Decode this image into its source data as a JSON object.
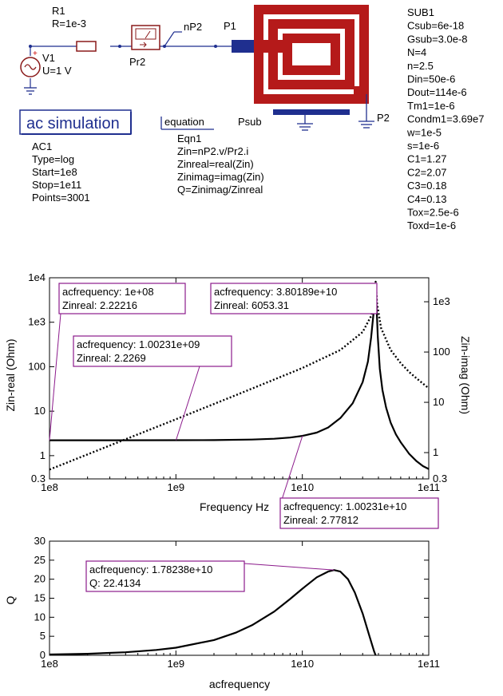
{
  "schematic": {
    "r1": {
      "name": "R1",
      "value": "R=1e-3"
    },
    "v1": {
      "name": "V1",
      "value": "U=1 V"
    },
    "pr2": {
      "name": "Pr2"
    },
    "node_np2": "nP2",
    "p1": "P1",
    "p2": "P2",
    "psub": "Psub",
    "ac_button": "ac simulation",
    "ac_lines": [
      "AC1",
      "Type=log",
      "Start=1e8",
      "Stop=1e11",
      "Points=3001"
    ],
    "equation_title": "equation",
    "equation_lines": [
      "Eqn1",
      "Zin=nP2.v/Pr2.i",
      "Zinreal=real(Zin)",
      "Zinimag=imag(Zin)",
      "Q=Zinimag/Zinreal"
    ],
    "sub_lines": [
      "SUB1",
      "Csub=6e-18",
      "Gsub=3.0e-8",
      "N=4",
      "n=2.5",
      "Din=50e-6",
      "Dout=114e-6",
      "Tm1=1e-6",
      "Condm1=3.69e7",
      "w=1e-5",
      "s=1e-6",
      "C1=1.27",
      "C2=2.07",
      "C3=0.18",
      "C4=0.13",
      "Tox=2.5e-6",
      "Toxd=1e-6"
    ],
    "colors": {
      "inductor": "#b51a1a",
      "port": "#1f2f8f",
      "wire": "#1f2f8f",
      "component": "#8a1a1a",
      "marker": "#8b1a8b"
    }
  },
  "chart_data": [
    {
      "type": "line",
      "xlabel": "Frequency Hz",
      "ylabel": "Zin-real (Ohm)",
      "ylabel_right": "Zin-imag (Ohm)",
      "x_scale": "log",
      "xlim": [
        100000000.0,
        100000000000.0
      ],
      "ylim": [
        0.3,
        10000
      ],
      "y2lim": [
        0.3,
        3000
      ],
      "x_ticks": [
        "1e8",
        "1e9",
        "1e10",
        "1e11"
      ],
      "y_ticks": [
        "0.3",
        "1",
        "10",
        "100",
        "1e3",
        "1e4"
      ],
      "y2_ticks": [
        "0.3",
        "1",
        "10",
        "100",
        "1e3"
      ],
      "series": [
        {
          "axis": "left",
          "style": "solid",
          "x": [
            100000000.0,
            300000000.0,
            1000000000.0,
            2000000000.0,
            4000000000.0,
            6000000000.0,
            8000000000.0,
            10000000000.0,
            13000000000.0,
            16000000000.0,
            20000000000.0,
            25000000000.0,
            30000000000.0,
            33000000000.0,
            35000000000.0,
            36500000000.0,
            37500000000.0,
            38000000000.0,
            38500000000.0,
            39500000000.0,
            41000000000.0,
            43000000000.0,
            46000000000.0,
            50000000000.0,
            55000000000.0,
            60000000000.0,
            70000000000.0,
            80000000000.0,
            90000000000.0,
            100000000000.0
          ],
          "y": [
            2.22,
            2.22,
            2.23,
            2.24,
            2.3,
            2.4,
            2.55,
            2.78,
            3.3,
            4.3,
            7,
            15,
            45,
            130,
            450,
            1500,
            4500,
            6053,
            3000,
            500,
            90,
            30,
            12,
            5.5,
            3,
            2,
            1.1,
            0.75,
            0.58,
            0.5
          ]
        },
        {
          "axis": "right",
          "style": "dotted",
          "x": [
            100000000.0,
            300000000.0,
            1000000000.0,
            3000000000.0,
            10000000000.0,
            20000000000.0,
            30000000000.0,
            35000000000.0,
            37000000000.0,
            38000000000.0,
            39000000000.0,
            42000000000.0,
            50000000000.0,
            60000000000.0,
            70000000000.0,
            80000000000.0,
            100000000000.0
          ],
          "y": [
            0.46,
            1.38,
            4.6,
            14,
            48,
            110,
            250,
            520,
            1100,
            2500,
            900,
            300,
            110,
            60,
            40,
            30,
            19
          ]
        }
      ],
      "markers": [
        {
          "text": [
            "acfrequency: 1e+08",
            "Zinreal: 2.22216"
          ],
          "x": 100000000.0,
          "y": 2.22216
        },
        {
          "text": [
            "acfrequency: 3.80189e+10",
            "Zinreal: 6053.31"
          ],
          "x": 38018900000.0,
          "y": 6053.31
        },
        {
          "text": [
            "acfrequency: 1.00231e+09",
            "Zinreal: 2.2269"
          ],
          "x": 1002310000.0,
          "y": 2.2269
        },
        {
          "text": [
            "acfrequency: 1.00231e+10",
            "Zinreal: 2.77812"
          ],
          "x": 10023100000.0,
          "y": 2.77812
        }
      ]
    },
    {
      "type": "line",
      "xlabel": "acfrequency",
      "ylabel": "Q",
      "x_scale": "log",
      "xlim": [
        100000000.0,
        100000000000.0
      ],
      "ylim": [
        0,
        30
      ],
      "x_ticks": [
        "1e8",
        "1e9",
        "1e10",
        "1e11"
      ],
      "y_ticks": [
        "0",
        "5",
        "10",
        "15",
        "20",
        "25",
        "30"
      ],
      "series": [
        {
          "style": "solid",
          "x": [
            100000000.0,
            200000000.0,
            400000000.0,
            700000000.0,
            1000000000.0,
            2000000000.0,
            3000000000.0,
            4000000000.0,
            6000000000.0,
            8000000000.0,
            10000000000.0,
            13000000000.0,
            16000000000.0,
            17800000000.0,
            20000000000.0,
            23000000000.0,
            26000000000.0,
            30000000000.0,
            34000000000.0,
            37000000000.0,
            38000000000.0
          ],
          "y": [
            0.2,
            0.4,
            0.8,
            1.4,
            2.0,
            4.0,
            6.0,
            7.9,
            11.5,
            14.8,
            17.5,
            20.5,
            22.0,
            22.41,
            22.0,
            20.0,
            16.5,
            11.0,
            5.0,
            1.0,
            0
          ]
        }
      ],
      "markers": [
        {
          "text": [
            "acfrequency: 1.78238e+10",
            "Q: 22.4134"
          ],
          "x": 17823800000.0,
          "y": 22.4134
        }
      ]
    }
  ]
}
